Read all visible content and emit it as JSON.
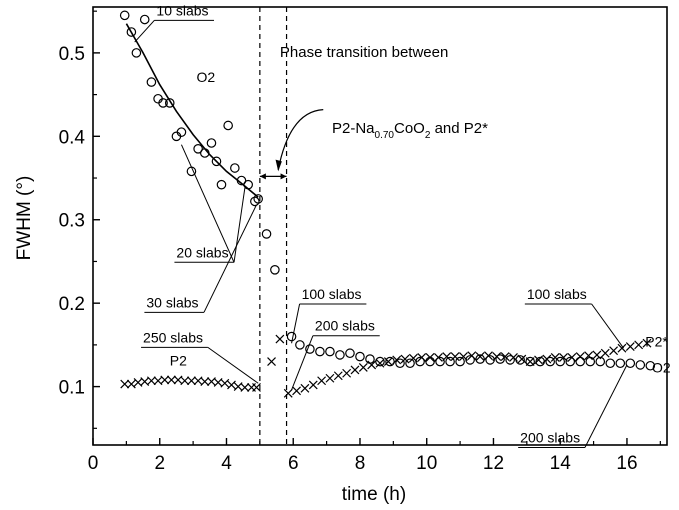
{
  "chart_data": {
    "type": "scatter",
    "xlabel": "time (h)",
    "ylabel": "FWHM (°)",
    "xlim": [
      0,
      17.2
    ],
    "ylim": [
      0.03,
      0.555
    ],
    "xticks": [
      0,
      2,
      4,
      6,
      8,
      10,
      12,
      14,
      16
    ],
    "yticks": [
      0.1,
      0.2,
      0.3,
      0.4,
      0.5
    ],
    "vlines": [
      5.0,
      5.8
    ],
    "fit_curve": [
      [
        1.0,
        0.535
      ],
      [
        1.5,
        0.5
      ],
      [
        2.0,
        0.462
      ],
      [
        2.5,
        0.43
      ],
      [
        3.0,
        0.402
      ],
      [
        3.5,
        0.378
      ],
      [
        4.0,
        0.358
      ],
      [
        4.5,
        0.342
      ],
      [
        4.95,
        0.327
      ]
    ],
    "series": [
      {
        "name": "O2",
        "marker": "circle",
        "points": [
          [
            0.95,
            0.545
          ],
          [
            1.15,
            0.525
          ],
          [
            1.3,
            0.5
          ],
          [
            1.55,
            0.54
          ],
          [
            1.75,
            0.465
          ],
          [
            1.95,
            0.445
          ],
          [
            2.1,
            0.44
          ],
          [
            2.3,
            0.44
          ],
          [
            2.5,
            0.4
          ],
          [
            2.65,
            0.405
          ],
          [
            2.95,
            0.358
          ],
          [
            3.15,
            0.385
          ],
          [
            3.35,
            0.38
          ],
          [
            3.55,
            0.392
          ],
          [
            3.7,
            0.37
          ],
          [
            3.85,
            0.342
          ],
          [
            4.05,
            0.413
          ],
          [
            4.25,
            0.362
          ],
          [
            4.45,
            0.347
          ],
          [
            4.65,
            0.342
          ],
          [
            4.85,
            0.322
          ],
          [
            4.95,
            0.325
          ],
          [
            5.2,
            0.283
          ],
          [
            5.45,
            0.24
          ],
          [
            5.95,
            0.16
          ],
          [
            6.2,
            0.15
          ],
          [
            6.5,
            0.145
          ],
          [
            6.8,
            0.142
          ],
          [
            7.1,
            0.142
          ],
          [
            7.4,
            0.138
          ],
          [
            7.7,
            0.14
          ],
          [
            8.0,
            0.136
          ],
          [
            8.3,
            0.133
          ],
          [
            8.6,
            0.13
          ],
          [
            8.9,
            0.13
          ],
          [
            9.2,
            0.128
          ],
          [
            9.5,
            0.128
          ],
          [
            9.8,
            0.13
          ],
          [
            10.1,
            0.13
          ],
          [
            10.4,
            0.13
          ],
          [
            10.7,
            0.13
          ],
          [
            11.0,
            0.13
          ],
          [
            11.3,
            0.132
          ],
          [
            11.6,
            0.133
          ],
          [
            11.9,
            0.132
          ],
          [
            12.2,
            0.133
          ],
          [
            12.5,
            0.132
          ],
          [
            12.8,
            0.132
          ],
          [
            13.1,
            0.13
          ],
          [
            13.4,
            0.13
          ],
          [
            13.7,
            0.13
          ],
          [
            14.0,
            0.13
          ],
          [
            14.3,
            0.13
          ],
          [
            14.6,
            0.13
          ],
          [
            14.9,
            0.13
          ],
          [
            15.2,
            0.13
          ],
          [
            15.5,
            0.128
          ],
          [
            15.8,
            0.128
          ],
          [
            16.1,
            0.128
          ],
          [
            16.4,
            0.126
          ],
          [
            16.7,
            0.125
          ]
        ]
      },
      {
        "name": "P2",
        "marker": "cross",
        "points": [
          [
            0.95,
            0.103
          ],
          [
            1.15,
            0.103
          ],
          [
            1.35,
            0.105
          ],
          [
            1.55,
            0.106
          ],
          [
            1.75,
            0.107
          ],
          [
            1.95,
            0.107
          ],
          [
            2.15,
            0.108
          ],
          [
            2.35,
            0.108
          ],
          [
            2.55,
            0.108
          ],
          [
            2.75,
            0.107
          ],
          [
            2.95,
            0.107
          ],
          [
            3.15,
            0.107
          ],
          [
            3.35,
            0.106
          ],
          [
            3.55,
            0.106
          ],
          [
            3.75,
            0.105
          ],
          [
            3.95,
            0.104
          ],
          [
            4.15,
            0.102
          ],
          [
            4.35,
            0.1
          ],
          [
            4.55,
            0.099
          ],
          [
            4.75,
            0.099
          ],
          [
            4.9,
            0.099
          ],
          [
            5.35,
            0.13
          ],
          [
            5.6,
            0.157
          ],
          [
            5.85,
            0.092
          ],
          [
            6.1,
            0.095
          ],
          [
            6.35,
            0.098
          ],
          [
            6.6,
            0.102
          ],
          [
            6.85,
            0.107
          ],
          [
            7.1,
            0.11
          ],
          [
            7.35,
            0.113
          ],
          [
            7.6,
            0.116
          ],
          [
            7.85,
            0.12
          ],
          [
            8.1,
            0.123
          ],
          [
            8.35,
            0.126
          ],
          [
            8.6,
            0.128
          ],
          [
            8.85,
            0.13
          ],
          [
            9.1,
            0.132
          ],
          [
            9.35,
            0.133
          ],
          [
            9.6,
            0.134
          ],
          [
            9.85,
            0.135
          ],
          [
            10.1,
            0.135
          ],
          [
            10.35,
            0.135
          ],
          [
            10.6,
            0.136
          ],
          [
            10.85,
            0.136
          ],
          [
            11.1,
            0.136
          ],
          [
            11.35,
            0.137
          ],
          [
            11.6,
            0.136
          ],
          [
            11.85,
            0.137
          ],
          [
            12.1,
            0.136
          ],
          [
            12.35,
            0.136
          ],
          [
            12.6,
            0.135
          ],
          [
            12.85,
            0.133
          ],
          [
            13.1,
            0.13
          ],
          [
            13.35,
            0.132
          ],
          [
            13.6,
            0.133
          ],
          [
            13.85,
            0.135
          ],
          [
            14.1,
            0.135
          ],
          [
            14.35,
            0.135
          ],
          [
            14.6,
            0.136
          ],
          [
            14.85,
            0.137
          ],
          [
            15.1,
            0.138
          ],
          [
            15.35,
            0.14
          ],
          [
            15.6,
            0.143
          ],
          [
            15.85,
            0.146
          ],
          [
            16.1,
            0.148
          ],
          [
            16.35,
            0.15
          ],
          [
            16.6,
            0.152
          ]
        ]
      }
    ],
    "annotations": [
      {
        "id": "a10",
        "text": "10 slabs",
        "label_at": [
          1.9,
          0.545
        ],
        "targets": [
          [
            1.25,
            0.513
          ]
        ]
      },
      {
        "id": "aO2",
        "text": "O2",
        "label_at": [
          3.1,
          0.465
        ],
        "targets": []
      },
      {
        "id": "a20",
        "text": "20 slabs",
        "label_at": [
          2.5,
          0.255
        ],
        "targets": [
          [
            2.65,
            0.39
          ],
          [
            4.55,
            0.338
          ]
        ]
      },
      {
        "id": "a30",
        "text": "30 slabs",
        "label_at": [
          1.6,
          0.195
        ],
        "targets": [
          [
            4.9,
            0.318
          ]
        ]
      },
      {
        "id": "aphase1",
        "text": "Phase transition between",
        "label_at": [
          5.6,
          0.495
        ],
        "targets": []
      },
      {
        "id": "a250",
        "text": "250 slabs",
        "label_at": [
          1.5,
          0.153
        ],
        "targets": [
          [
            4.95,
            0.104
          ]
        ]
      },
      {
        "id": "aP2",
        "text": "P2",
        "label_at": [
          2.3,
          0.125
        ],
        "targets": []
      },
      {
        "id": "a100l",
        "text": "100 slabs",
        "label_at": [
          6.25,
          0.205
        ],
        "targets": [
          [
            5.95,
            0.152
          ]
        ]
      },
      {
        "id": "a200l",
        "text": "200 slabs",
        "label_at": [
          6.65,
          0.167
        ],
        "targets": [
          [
            5.95,
            0.096
          ]
        ]
      },
      {
        "id": "a100r",
        "text": "100 slabs",
        "label_at": [
          13.0,
          0.205
        ],
        "targets": [
          [
            15.9,
            0.146
          ]
        ]
      },
      {
        "id": "a200r",
        "text": "200 slabs",
        "label_at": [
          12.8,
          0.033
        ],
        "targets": [
          [
            16.0,
            0.126
          ]
        ]
      },
      {
        "id": "aP2star",
        "text": "P2*",
        "label_at": [
          16.55,
          0.148
        ],
        "targets": []
      },
      {
        "id": "aO2r",
        "text": "O2",
        "label_at": [
          16.75,
          0.117
        ],
        "targets": []
      }
    ],
    "phase_label": {
      "prefix": "P2-Na",
      "sub": "0.70",
      "mid": "CoO",
      "sub2": "2",
      "suffix": " and P2*"
    }
  }
}
